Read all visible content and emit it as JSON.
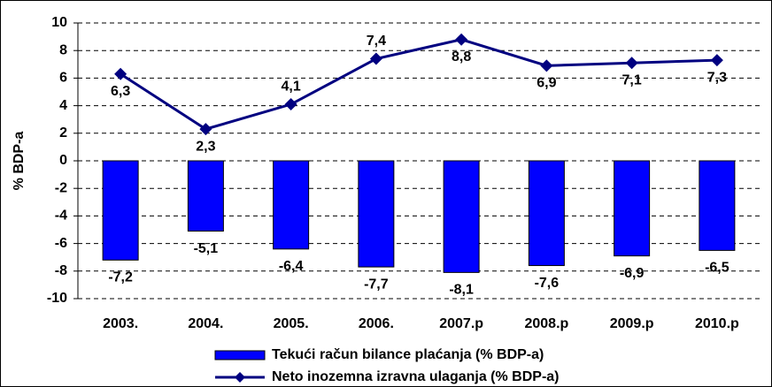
{
  "chart_data": {
    "type": "bar_line",
    "y_label": "% BDP-a",
    "categories": [
      "2003.",
      "2004.",
      "2005.",
      "2006.",
      "2007.p",
      "2008.p",
      "2009.p",
      "2010.p"
    ],
    "series": [
      {
        "name": "Tekući račun bilance plaćanja (% BDP-a)",
        "type": "bar",
        "color": "#0000ff",
        "values": [
          -7.2,
          -5.1,
          -6.4,
          -7.7,
          -8.1,
          -7.6,
          -6.9,
          -6.5
        ],
        "value_labels": [
          "-7,2",
          "-5,1",
          "-6,4",
          "-7,7",
          "-8,1",
          "-7,6",
          "-6,9",
          "-6,5"
        ]
      },
      {
        "name": "Neto inozemna izravna ulaganja (% BDP-a)",
        "type": "line",
        "color": "#000080",
        "values": [
          6.3,
          2.3,
          4.1,
          7.4,
          8.8,
          6.9,
          7.1,
          7.3
        ],
        "value_labels": [
          "6,3",
          "2,3",
          "4,1",
          "7,4",
          "8,8",
          "6,9",
          "7,1",
          "7,3"
        ]
      }
    ],
    "ylim": [
      -10,
      10
    ],
    "yticks": [
      -10,
      -8,
      -6,
      -4,
      -2,
      0,
      2,
      4,
      6,
      8,
      10
    ],
    "grid": true,
    "legend": "bottom"
  }
}
